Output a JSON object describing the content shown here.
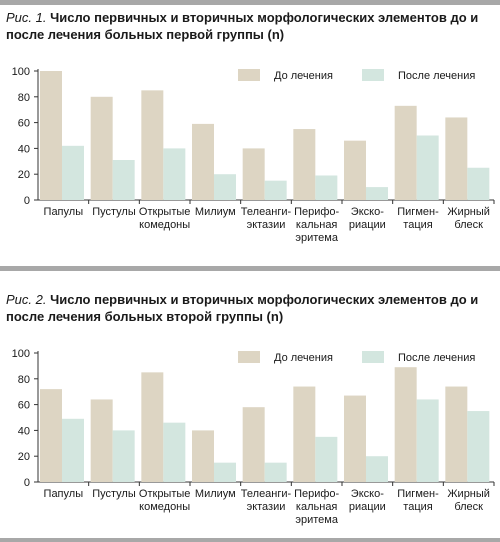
{
  "figures": [
    {
      "fig_label": "Рис. 1.",
      "title": "Число первичных и вторичных морфологических элементов до и после лечения больных первой группы (n)",
      "legend": [
        "До лечения",
        "После лечения"
      ]
    },
    {
      "fig_label": "Рис. 2.",
      "title": "Число первичных и вторичных морфологических элементов до и после лечения больных второй группы (n)",
      "legend": [
        "До лечения",
        "После лечения"
      ]
    }
  ],
  "colors": {
    "before": "#ddd5c3",
    "after": "#d3e6df",
    "axis": "#333333"
  },
  "chart_data": [
    {
      "type": "bar",
      "title": "Рис. 1. Число первичных и вторичных морфологических элементов до и после лечения больных первой группы (n)",
      "categories": [
        [
          "Папулы"
        ],
        [
          "Пустулы"
        ],
        [
          "Открытые",
          "комедоны"
        ],
        [
          "Милиум"
        ],
        [
          "Телеанги-",
          "эктазии"
        ],
        [
          "Перифо-",
          "кальная",
          "эритема"
        ],
        [
          "Экско-",
          "риации"
        ],
        [
          "Пигмен-",
          "тация"
        ],
        [
          "Жирный",
          "блеск"
        ]
      ],
      "series": [
        {
          "name": "До лечения",
          "values": [
            100,
            80,
            85,
            59,
            40,
            55,
            46,
            73,
            64
          ]
        },
        {
          "name": "После лечения",
          "values": [
            42,
            31,
            40,
            20,
            15,
            19,
            10,
            50,
            25
          ]
        }
      ],
      "yticks": [
        0,
        20,
        40,
        60,
        80,
        100
      ],
      "ylim": [
        0,
        100
      ],
      "grid": false,
      "legend_position": "top-right"
    },
    {
      "type": "bar",
      "title": "Рис. 2. Число первичных и вторичных морфологических элементов до и после лечения больных второй группы (n)",
      "categories": [
        [
          "Папулы"
        ],
        [
          "Пустулы"
        ],
        [
          "Открытые",
          "комедоны"
        ],
        [
          "Милиум"
        ],
        [
          "Телеанги-",
          "эктазии"
        ],
        [
          "Перифо-",
          "кальная",
          "эритема"
        ],
        [
          "Экско-",
          "риации"
        ],
        [
          "Пигмен-",
          "тация"
        ],
        [
          "Жирный",
          "блеск"
        ]
      ],
      "series": [
        {
          "name": "До лечения",
          "values": [
            72,
            64,
            85,
            40,
            58,
            74,
            67,
            89,
            74
          ]
        },
        {
          "name": "После лечения",
          "values": [
            49,
            40,
            46,
            15,
            15,
            35,
            20,
            64,
            55
          ]
        }
      ],
      "yticks": [
        0,
        20,
        40,
        60,
        80,
        100
      ],
      "ylim": [
        0,
        100
      ],
      "grid": false,
      "legend_position": "top-right"
    }
  ]
}
